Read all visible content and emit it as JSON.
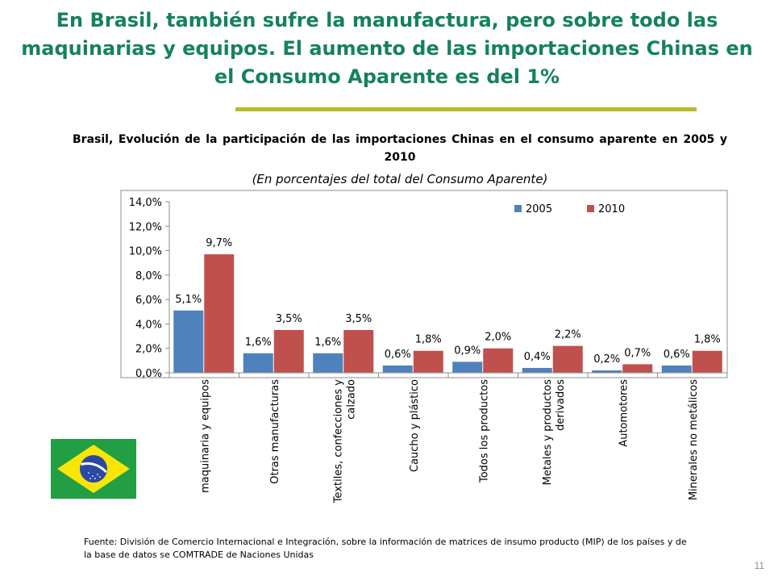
{
  "slide": {
    "title": "En Brasil, también sufre la manufactura, pero sobre todo las maquinarias y equipos. El aumento de las importaciones Chinas en el Consumo  Aparente es del 1%",
    "source": "Fuente: División de Comercio Internacional e Integración, sobre la información de matrices de insumo producto (MIP) de los países y de la base de datos se COMTRADE de Naciones Unidas",
    "page_number": "11",
    "flag_icon": "brazil-flag-icon",
    "colors": {
      "title": "#15815f",
      "rule": "#b6bd28"
    }
  },
  "chart_data": {
    "type": "bar",
    "title": "Brasil, Evolución de la participación de las importaciones Chinas en el consumo aparente en 2005 y 2010",
    "subtitle": "(En porcentajes del total del Consumo Aparente)",
    "categories": [
      "maquinaria y equipos",
      "Otras manufacturas",
      "Textiles, confecciones y calzado",
      "Caucho y plástico",
      "Todos los productos",
      "Metales y productos derivados",
      "Automotores",
      "Minerales no metálicos"
    ],
    "category_lines": [
      [
        "maquinaria y equipos"
      ],
      [
        "Otras manufacturas"
      ],
      [
        "Textiles, confecciones y",
        "calzado"
      ],
      [
        "Caucho y plástico"
      ],
      [
        "Todos los productos"
      ],
      [
        "Metales y productos",
        "derivados"
      ],
      [
        "Automotores"
      ],
      [
        "Minerales no metálicos"
      ]
    ],
    "series": [
      {
        "name": "2005",
        "color": "#4f81bd",
        "values": [
          5.1,
          1.6,
          1.6,
          0.6,
          0.9,
          0.4,
          0.2,
          0.6
        ],
        "labels": [
          "5,1%",
          "1,6%",
          "1,6%",
          "0,6%",
          "0,9%",
          "0,4%",
          "0,2%",
          "0,6%"
        ]
      },
      {
        "name": "2010",
        "color": "#c0504d",
        "values": [
          9.7,
          3.5,
          3.5,
          1.8,
          2.0,
          2.2,
          0.7,
          1.8
        ],
        "labels": [
          "9,7%",
          "3,5%",
          "3,5%",
          "1,8%",
          "2,0%",
          "2,2%",
          "0,7%",
          "1,8%"
        ]
      }
    ],
    "ylim": [
      0,
      14
    ],
    "yticks": [
      0,
      2,
      4,
      6,
      8,
      10,
      12,
      14
    ],
    "ytick_labels": [
      "0,0%",
      "2,0%",
      "4,0%",
      "6,0%",
      "8,0%",
      "10,0%",
      "12,0%",
      "14,0%"
    ],
    "xlabel": "",
    "ylabel": "",
    "grid": false,
    "legend_position": "top-right"
  }
}
